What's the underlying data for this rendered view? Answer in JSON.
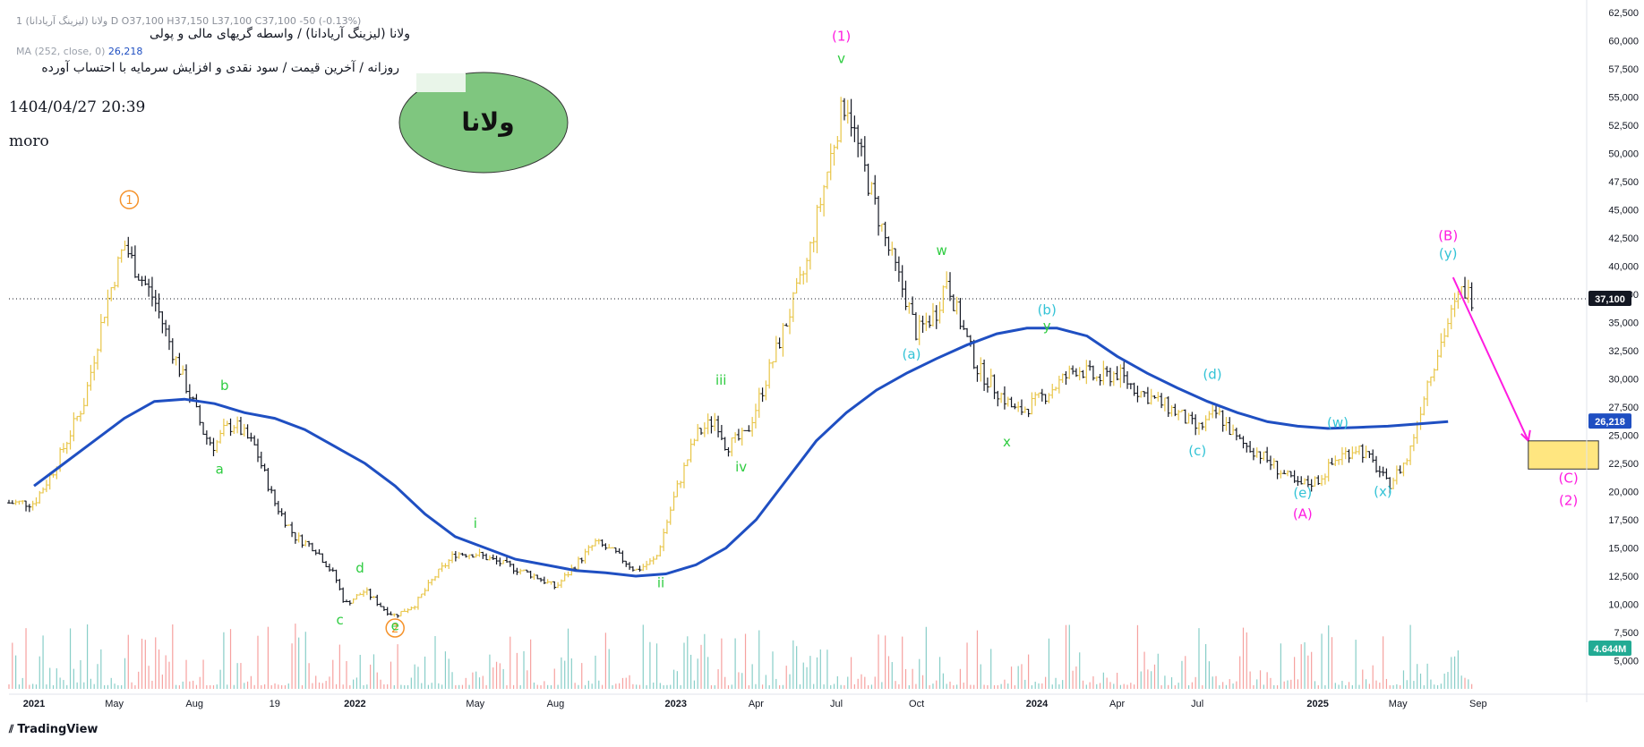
{
  "header": {
    "ohlc": "1  ولانا (لیزینگ آریادانا)  D  O37,100  H37,150  L37,100  C37,100  -50 (-0.13%)",
    "title_line1": "ولانا (لیزینگ آریادانا) / واسطه گریهای مالی و پولی",
    "title_line2": "روزانه / آخرین قیمت / سود نقدی و افزایش سرمایه با احتساب آورده",
    "ma_label": "MA (252, close, 0)",
    "ma_value": "26,218",
    "date": "1404/04/27 20:39",
    "author": "moro",
    "badge": "ولانا"
  },
  "footer": {
    "brand": "TradingView"
  },
  "colors": {
    "ma_line": "#1f4fc2",
    "bar_up": "#e8c547",
    "bar_down": "#131722",
    "green_wave": "#2ecc40",
    "cyan_wave": "#33c3d6",
    "magenta_wave": "#ff1ce0",
    "orange_wave": "#f5922a",
    "target_box": "#ffe680",
    "badge_fill": "#7fc67f"
  },
  "chart_data": {
    "type": "bar",
    "y_axis": {
      "min": 2500,
      "max": 62500,
      "ticks": [
        "5,000",
        "7,500",
        "10,000",
        "12,500",
        "15,000",
        "17,500",
        "20,000",
        "22,500",
        "25,000",
        "27,500",
        "30,000",
        "32,500",
        "35,000",
        "37,500",
        "40,000",
        "42,500",
        "45,000",
        "47,500",
        "50,000",
        "52,500",
        "55,000",
        "57,500",
        "60,000",
        "62,500"
      ],
      "price_label": "37,100",
      "ma_label": "26,218",
      "volume_label": "4.644M"
    },
    "x_axis": {
      "ticks": [
        "2021",
        "May",
        "Aug",
        "19",
        "2022",
        "May",
        "Aug",
        "2023",
        "Apr",
        "Jul",
        "Oct",
        "2024",
        "Apr",
        "Jul",
        "2025",
        "May",
        "Sep"
      ],
      "tick_pos": [
        0.0,
        0.08,
        0.16,
        0.24,
        0.32,
        0.44,
        0.52,
        0.64,
        0.72,
        0.8,
        0.88,
        1.0,
        1.08,
        1.16,
        1.28,
        1.36,
        1.44
      ]
    },
    "price_path": [
      [
        0.0,
        19000
      ],
      [
        0.02,
        22000
      ],
      [
        0.05,
        28000
      ],
      [
        0.07,
        36000
      ],
      [
        0.09,
        42000
      ],
      [
        0.1,
        40000
      ],
      [
        0.12,
        37000
      ],
      [
        0.14,
        32000
      ],
      [
        0.16,
        27500
      ],
      [
        0.17,
        25000
      ],
      [
        0.18,
        24000
      ],
      [
        0.19,
        25500
      ],
      [
        0.2,
        26000
      ],
      [
        0.22,
        24000
      ],
      [
        0.24,
        19000
      ],
      [
        0.26,
        16000
      ],
      [
        0.28,
        15000
      ],
      [
        0.3,
        12500
      ],
      [
        0.31,
        10000
      ],
      [
        0.33,
        11200
      ],
      [
        0.35,
        9500
      ],
      [
        0.36,
        9000
      ],
      [
        0.38,
        10000
      ],
      [
        0.4,
        12500
      ],
      [
        0.42,
        14500
      ],
      [
        0.44,
        14500
      ],
      [
        0.47,
        13500
      ],
      [
        0.5,
        12500
      ],
      [
        0.52,
        11500
      ],
      [
        0.54,
        13500
      ],
      [
        0.56,
        15500
      ],
      [
        0.58,
        14500
      ],
      [
        0.6,
        13000
      ],
      [
        0.62,
        14000
      ],
      [
        0.64,
        20000
      ],
      [
        0.66,
        25000
      ],
      [
        0.68,
        26500
      ],
      [
        0.69,
        24000
      ],
      [
        0.71,
        25000
      ],
      [
        0.73,
        30000
      ],
      [
        0.75,
        35000
      ],
      [
        0.77,
        40000
      ],
      [
        0.79,
        48000
      ],
      [
        0.8,
        52000
      ],
      [
        0.81,
        55000
      ],
      [
        0.82,
        51000
      ],
      [
        0.83,
        48000
      ],
      [
        0.85,
        42000
      ],
      [
        0.87,
        37000
      ],
      [
        0.88,
        34000
      ],
      [
        0.9,
        36000
      ],
      [
        0.91,
        39000
      ],
      [
        0.92,
        36000
      ],
      [
        0.94,
        31000
      ],
      [
        0.96,
        29000
      ],
      [
        0.98,
        27000
      ],
      [
        1.0,
        28000
      ],
      [
        1.02,
        29500
      ],
      [
        1.04,
        31000
      ],
      [
        1.06,
        30000
      ],
      [
        1.08,
        30500
      ],
      [
        1.1,
        29000
      ],
      [
        1.12,
        28000
      ],
      [
        1.14,
        27000
      ],
      [
        1.16,
        25500
      ],
      [
        1.18,
        27000
      ],
      [
        1.2,
        24500
      ],
      [
        1.22,
        23500
      ],
      [
        1.24,
        22000
      ],
      [
        1.26,
        20500
      ],
      [
        1.28,
        21000
      ],
      [
        1.3,
        23000
      ],
      [
        1.32,
        24000
      ],
      [
        1.34,
        22000
      ],
      [
        1.35,
        20500
      ],
      [
        1.37,
        23000
      ],
      [
        1.39,
        30000
      ],
      [
        1.41,
        35000
      ],
      [
        1.425,
        38000
      ],
      [
        1.435,
        37100
      ]
    ],
    "ma_path": [
      [
        0.0,
        20500
      ],
      [
        0.03,
        22500
      ],
      [
        0.06,
        24500
      ],
      [
        0.09,
        26500
      ],
      [
        0.12,
        28000
      ],
      [
        0.15,
        28200
      ],
      [
        0.18,
        27800
      ],
      [
        0.21,
        27000
      ],
      [
        0.24,
        26500
      ],
      [
        0.27,
        25500
      ],
      [
        0.3,
        24000
      ],
      [
        0.33,
        22500
      ],
      [
        0.36,
        20500
      ],
      [
        0.39,
        18000
      ],
      [
        0.42,
        16000
      ],
      [
        0.45,
        15000
      ],
      [
        0.48,
        14000
      ],
      [
        0.51,
        13500
      ],
      [
        0.54,
        13000
      ],
      [
        0.57,
        12800
      ],
      [
        0.6,
        12500
      ],
      [
        0.63,
        12700
      ],
      [
        0.66,
        13500
      ],
      [
        0.69,
        15000
      ],
      [
        0.72,
        17500
      ],
      [
        0.75,
        21000
      ],
      [
        0.78,
        24500
      ],
      [
        0.81,
        27000
      ],
      [
        0.84,
        29000
      ],
      [
        0.87,
        30500
      ],
      [
        0.9,
        31800
      ],
      [
        0.93,
        33000
      ],
      [
        0.96,
        34000
      ],
      [
        0.99,
        34500
      ],
      [
        1.02,
        34500
      ],
      [
        1.05,
        33800
      ],
      [
        1.08,
        32000
      ],
      [
        1.11,
        30500
      ],
      [
        1.14,
        29200
      ],
      [
        1.17,
        28000
      ],
      [
        1.2,
        27000
      ],
      [
        1.23,
        26200
      ],
      [
        1.26,
        25800
      ],
      [
        1.29,
        25600
      ],
      [
        1.32,
        25700
      ],
      [
        1.35,
        25800
      ],
      [
        1.38,
        26000
      ],
      [
        1.41,
        26218
      ]
    ],
    "last_price": 37100,
    "projection": {
      "from": [
        1.415,
        39000
      ],
      "to": [
        1.49,
        24500
      ]
    },
    "target_box": {
      "x0": 1.49,
      "x1": 1.56,
      "y0": 22000,
      "y1": 24500
    },
    "wave_labels": [
      {
        "text": "1",
        "x": 0.095,
        "y": 45500,
        "color": "orange",
        "circle": true
      },
      {
        "text": "2",
        "x": 0.36,
        "y": 7500,
        "color": "orange",
        "circle": true
      },
      {
        "text": "(1)",
        "x": 0.805,
        "y": 60000,
        "color": "magenta"
      },
      {
        "text": "v",
        "x": 0.805,
        "y": 58000,
        "color": "green"
      },
      {
        "text": "a",
        "x": 0.185,
        "y": 21600,
        "color": "green"
      },
      {
        "text": "b",
        "x": 0.19,
        "y": 29000,
        "color": "green"
      },
      {
        "text": "c",
        "x": 0.305,
        "y": 8200,
        "color": "green"
      },
      {
        "text": "d",
        "x": 0.325,
        "y": 12800,
        "color": "green"
      },
      {
        "text": "e",
        "x": 0.36,
        "y": 7700,
        "color": "green"
      },
      {
        "text": "i",
        "x": 0.44,
        "y": 16800,
        "color": "green"
      },
      {
        "text": "ii",
        "x": 0.625,
        "y": 11500,
        "color": "green"
      },
      {
        "text": "iii",
        "x": 0.685,
        "y": 29500,
        "color": "green"
      },
      {
        "text": "iv",
        "x": 0.705,
        "y": 21800,
        "color": "green"
      },
      {
        "text": "w",
        "x": 0.905,
        "y": 41000,
        "color": "green"
      },
      {
        "text": "x",
        "x": 0.97,
        "y": 24000,
        "color": "green"
      },
      {
        "text": "y",
        "x": 1.01,
        "y": 34300,
        "color": "green"
      },
      {
        "text": "(a)",
        "x": 0.875,
        "y": 31800,
        "color": "cyan"
      },
      {
        "text": "(b)",
        "x": 1.01,
        "y": 35700,
        "color": "cyan"
      },
      {
        "text": "(c)",
        "x": 1.16,
        "y": 23200,
        "color": "cyan"
      },
      {
        "text": "(d)",
        "x": 1.175,
        "y": 30000,
        "color": "cyan"
      },
      {
        "text": "(e)",
        "x": 1.265,
        "y": 19500,
        "color": "cyan"
      },
      {
        "text": "(w)",
        "x": 1.3,
        "y": 25700,
        "color": "cyan"
      },
      {
        "text": "(x)",
        "x": 1.345,
        "y": 19600,
        "color": "cyan"
      },
      {
        "text": "(y)",
        "x": 1.41,
        "y": 40700,
        "color": "cyan"
      },
      {
        "text": "(A)",
        "x": 1.265,
        "y": 17600,
        "color": "magenta"
      },
      {
        "text": "(B)",
        "x": 1.41,
        "y": 42300,
        "color": "magenta"
      },
      {
        "text": "(C)",
        "x": 1.53,
        "y": 20800,
        "color": "magenta"
      },
      {
        "text": "(2)",
        "x": 1.53,
        "y": 18800,
        "color": "magenta"
      }
    ]
  }
}
